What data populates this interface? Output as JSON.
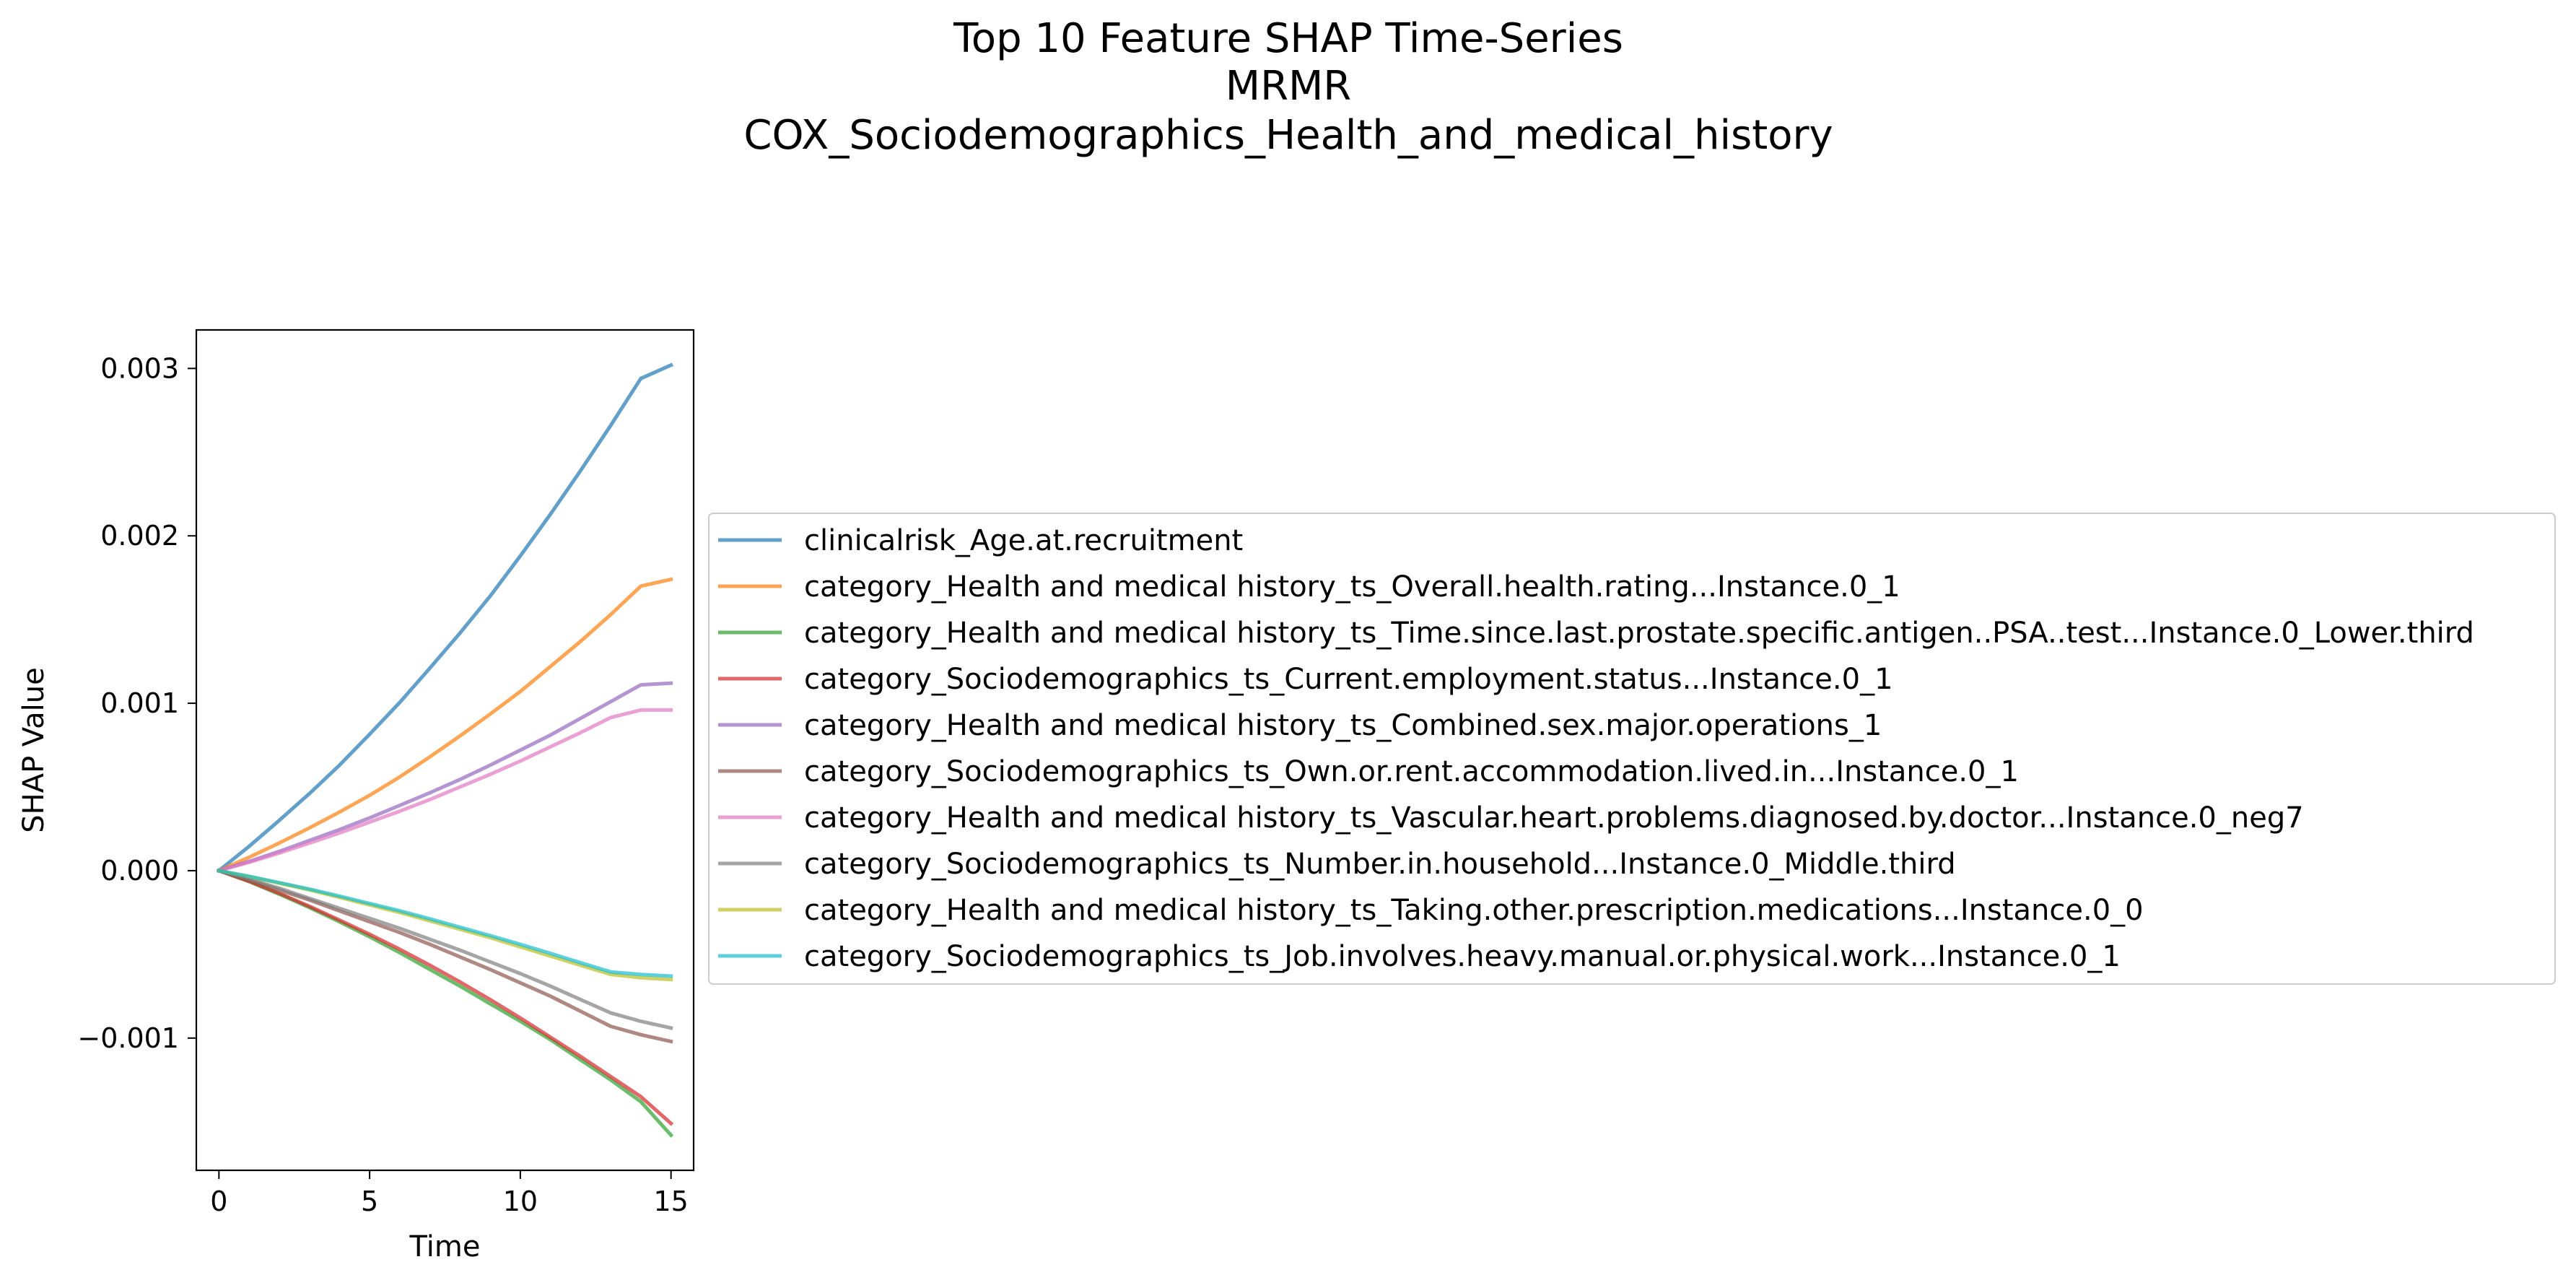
{
  "chart_data": {
    "type": "line",
    "title": [
      "Top 10 Feature SHAP Time-Series",
      "MRMR",
      "COX_Sociodemographics_Health_and_medical_history"
    ],
    "xlabel": "Time",
    "ylabel": "SHAP Value",
    "xlim": [
      -0.75,
      15.75
    ],
    "ylim": [
      -0.00179,
      0.00323
    ],
    "xticks": [
      0,
      5,
      10,
      15
    ],
    "xtick_labels": [
      "0",
      "5",
      "10",
      "15"
    ],
    "yticks": [
      -0.001,
      0.0,
      0.001,
      0.002,
      0.003
    ],
    "ytick_labels": [
      "−0.001",
      "0.000",
      "0.001",
      "0.002",
      "0.003"
    ],
    "grid": false,
    "legend_position": "center-right outside",
    "x": [
      0,
      1,
      2,
      3,
      4,
      5,
      6,
      7,
      8,
      9,
      10,
      11,
      12,
      13,
      14,
      15
    ],
    "series": [
      {
        "name": "clinicalrisk_Age.at.recruitment",
        "color": "#1f77b4",
        "values": [
          0,
          0.000145,
          0.0003,
          0.00046,
          0.00063,
          0.000815,
          0.001005,
          0.00121,
          0.00142,
          0.00164,
          0.00188,
          0.00213,
          0.00239,
          0.00266,
          0.00294,
          0.00302
        ]
      },
      {
        "name": "category_Health and medical history_ts_Overall.health.rating...Instance.0_1",
        "color": "#ff7f0e",
        "values": [
          0,
          8e-05,
          0.000165,
          0.000255,
          0.00035,
          0.00045,
          0.00056,
          0.00068,
          0.000805,
          0.000935,
          0.00107,
          0.00122,
          0.00137,
          0.00153,
          0.0017,
          0.00174
        ]
      },
      {
        "name": "category_Health and medical history_ts_Time.since.last.prostate.specific.antigen..PSA..test...Instance.0_Lower.third",
        "color": "#2ca02c",
        "values": [
          0,
          -6.5e-05,
          -0.00014,
          -0.00022,
          -0.000305,
          -0.000395,
          -0.00049,
          -0.00059,
          -0.00069,
          -0.000795,
          -0.0009,
          -0.00101,
          -0.00113,
          -0.00125,
          -0.00138,
          -0.00158
        ]
      },
      {
        "name": "category_Sociodemographics_ts_Current.employment.status...Instance.0_1",
        "color": "#d62728",
        "values": [
          0,
          -6.3e-05,
          -0.000135,
          -0.000213,
          -0.000295,
          -0.00038,
          -0.00047,
          -0.000565,
          -0.000665,
          -0.00077,
          -0.00088,
          -0.000995,
          -0.00111,
          -0.00123,
          -0.00135,
          -0.00151
        ]
      },
      {
        "name": "category_Health and medical history_ts_Combined.sex.major.operations_1",
        "color": "#9467bd",
        "values": [
          0,
          5.5e-05,
          0.000115,
          0.00018,
          0.000245,
          0.000315,
          0.00039,
          0.000465,
          0.000545,
          0.00063,
          0.00072,
          0.00081,
          0.00091,
          0.00101,
          0.00111,
          0.00112
        ]
      },
      {
        "name": "category_Sociodemographics_ts_Own.or.rent.accommodation.lived.in...Instance.0_1",
        "color": "#8c564b",
        "values": [
          0,
          -5.5e-05,
          -0.000115,
          -0.000175,
          -0.00024,
          -0.000305,
          -0.00037,
          -0.00044,
          -0.000515,
          -0.00059,
          -0.00067,
          -0.00075,
          -0.00084,
          -0.00093,
          -0.00098,
          -0.00102
        ]
      },
      {
        "name": "category_Health and medical history_ts_Vascular.heart.problems.diagnosed.by.doctor...Instance.0_neg7",
        "color": "#e377c2",
        "values": [
          0,
          5e-05,
          0.000105,
          0.000165,
          0.000225,
          0.00029,
          0.000355,
          0.000425,
          0.0005,
          0.000575,
          0.000655,
          0.00074,
          0.000825,
          0.000915,
          0.00096,
          0.00096
        ]
      },
      {
        "name": "category_Sociodemographics_ts_Number.in.household...Instance.0_Middle.third",
        "color": "#7f7f7f",
        "values": [
          0,
          -5e-05,
          -0.000105,
          -0.000165,
          -0.000225,
          -0.000285,
          -0.000345,
          -0.00041,
          -0.000475,
          -0.000545,
          -0.000615,
          -0.00069,
          -0.00077,
          -0.00085,
          -0.0009,
          -0.00094
        ]
      },
      {
        "name": "category_Health and medical history_ts_Taking.other.prescription.medications...Instance.0_0",
        "color": "#bcbd22",
        "values": [
          0,
          -3.5e-05,
          -7.5e-05,
          -0.000115,
          -0.00016,
          -0.000205,
          -0.00025,
          -0.0003,
          -0.00035,
          -0.0004,
          -0.000455,
          -0.00051,
          -0.000565,
          -0.00062,
          -0.00064,
          -0.00065
        ]
      },
      {
        "name": "category_Sociodemographics_ts_Job.involves.heavy.manual.or.physical.work...Instance.0_1",
        "color": "#17becf",
        "values": [
          0,
          -3.4e-05,
          -7.2e-05,
          -0.00011,
          -0.000152,
          -0.000196,
          -0.00024,
          -0.000288,
          -0.000338,
          -0.000388,
          -0.00044,
          -0.000494,
          -0.00055,
          -0.000605,
          -0.00062,
          -0.00063
        ]
      }
    ]
  }
}
